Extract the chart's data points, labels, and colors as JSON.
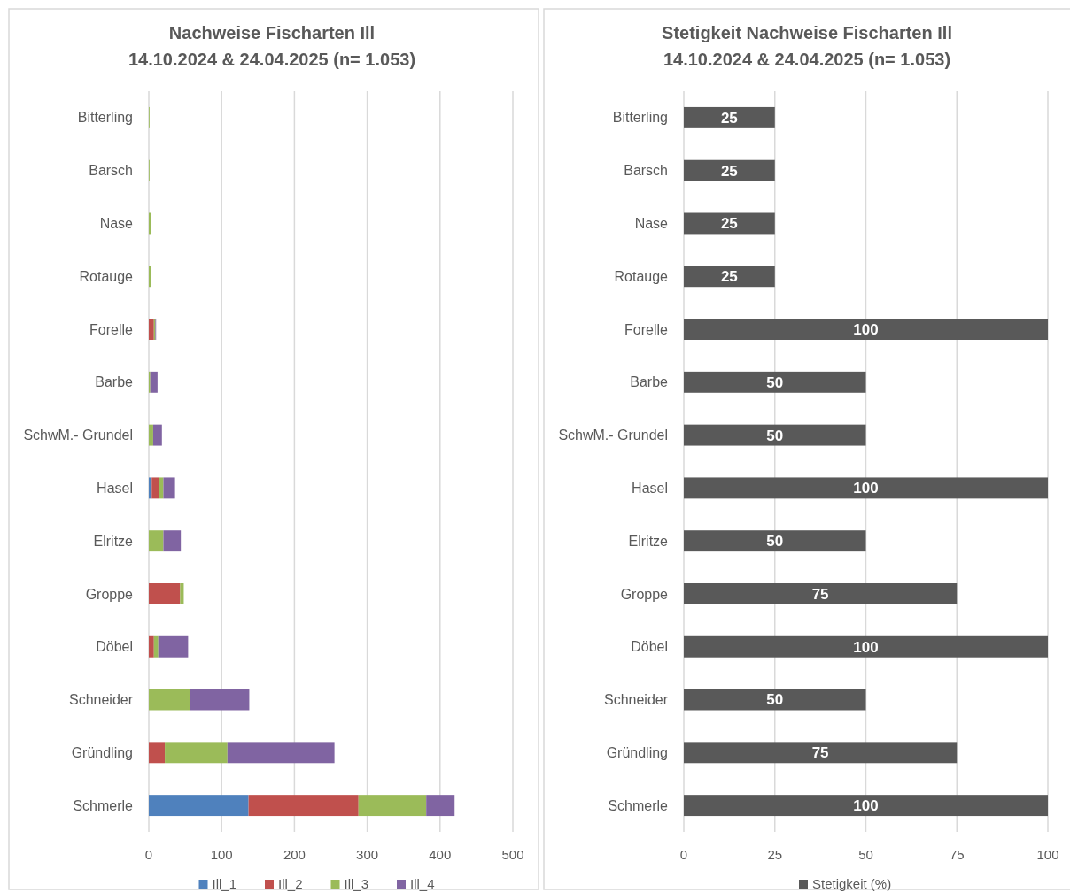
{
  "chart_data": [
    {
      "type": "bar",
      "title": "Nachweise Fischarten Ill",
      "subtitle": "14.10.2024 & 24.04.2025 (n= 1.053)",
      "orientation": "horizontal",
      "stacked": true,
      "categories": [
        "Bitterling",
        "Barsch",
        "Nase",
        "Rotauge",
        "Forelle",
        "Barbe",
        "SchwM.- Grundel",
        "Hasel",
        "Elritze",
        "Groppe",
        "Döbel",
        "Schneider",
        "Gründling",
        "Schmerle"
      ],
      "series": [
        {
          "name": "Ill_1",
          "color": "#4f81bd",
          "values": [
            null,
            null,
            null,
            null,
            null,
            null,
            null,
            4,
            null,
            null,
            null,
            null,
            null,
            137
          ]
        },
        {
          "name": "Ill_2",
          "color": "#c0504d",
          "values": [
            null,
            null,
            null,
            null,
            7,
            null,
            null,
            10,
            null,
            43,
            7,
            null,
            22,
            151
          ]
        },
        {
          "name": "Ill_3",
          "color": "#9bbb59",
          "values": [
            1,
            1,
            3,
            3,
            2,
            2,
            6,
            6,
            20,
            5,
            6,
            56,
            86,
            93
          ]
        },
        {
          "name": "Ill_4",
          "color": "#8064a2",
          "values": [
            null,
            null,
            null,
            null,
            1,
            10,
            12,
            16,
            24,
            null,
            41,
            82,
            147,
            39
          ]
        }
      ],
      "xlim": [
        0,
        500
      ],
      "xticks": [
        0,
        100,
        200,
        300,
        400,
        500
      ],
      "grid": "x",
      "legend": "bottom"
    },
    {
      "type": "bar",
      "title": "Stetigkeit Nachweise Fischarten Ill",
      "subtitle": "14.10.2024 & 24.04.2025 (n= 1.053)",
      "orientation": "horizontal",
      "categories": [
        "Bitterling",
        "Barsch",
        "Nase",
        "Rotauge",
        "Forelle",
        "Barbe",
        "SchwM.- Grundel",
        "Hasel",
        "Elritze",
        "Groppe",
        "Döbel",
        "Schneider",
        "Gründling",
        "Schmerle"
      ],
      "series": [
        {
          "name": "Stetigkeit (%)",
          "color": "#595959",
          "values": [
            25,
            25,
            25,
            25,
            100,
            50,
            50,
            100,
            50,
            75,
            100,
            50,
            75,
            100
          ]
        }
      ],
      "xlim": [
        0,
        100
      ],
      "xticks": [
        0,
        25,
        50,
        75,
        100
      ],
      "grid": "x",
      "legend": "bottom",
      "data_labels": true
    }
  ]
}
